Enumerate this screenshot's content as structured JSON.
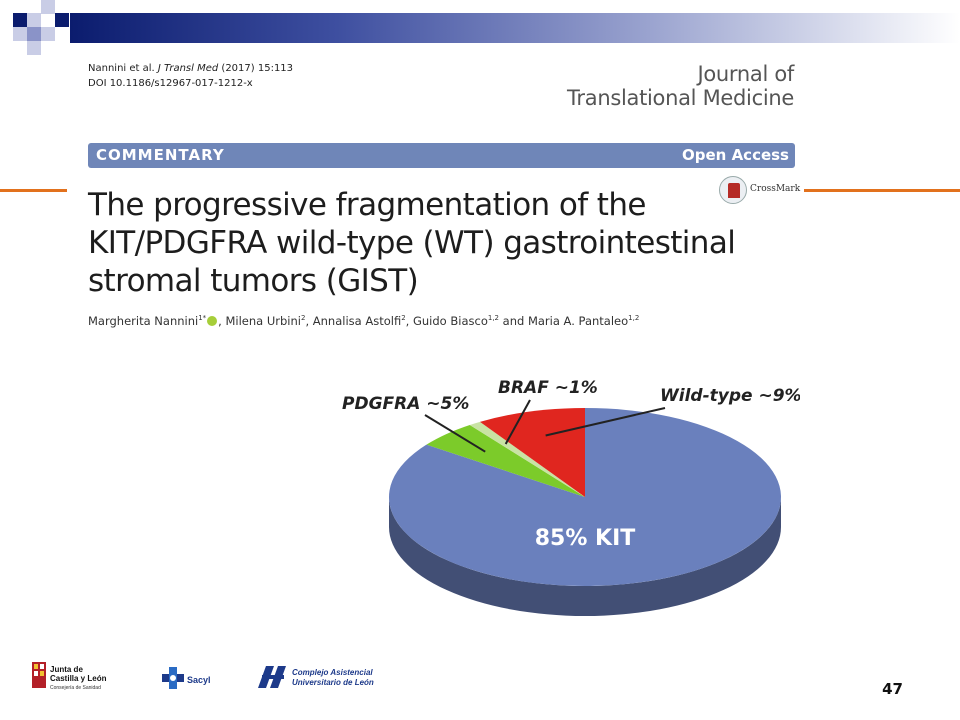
{
  "citation": {
    "line1_authors": "Nannini et al.",
    "line1_journal": "J Transl Med",
    "line1_rest": "(2017) 15:113",
    "doi": "DOI 10.1186/s12967-017-1212-x"
  },
  "journal": {
    "line1": "Journal of",
    "line2": "Translational Medicine"
  },
  "banner": {
    "type": "COMMENTARY",
    "access": "Open Access"
  },
  "crossmark": "CrossMark",
  "title": "The progressive fragmentation of the KIT/PDGFRA wild-type (WT) gastrointestinal stromal tumors (GIST)",
  "authors": [
    {
      "name": "Margherita Nannini",
      "sup": "1*",
      "orcid": true,
      "sep": ", "
    },
    {
      "name": "Milena Urbini",
      "sup": "2",
      "sep": ", "
    },
    {
      "name": "Annalisa Astolfi",
      "sup": "2",
      "sep": ", "
    },
    {
      "name": "Guido Biasco",
      "sup": "1,2",
      "sep": " and "
    },
    {
      "name": "Maria A. Pantaleo",
      "sup": "1,2",
      "sep": ""
    }
  ],
  "chart_data": {
    "type": "pie",
    "slices": [
      {
        "label": "85% KIT",
        "value": 85,
        "color": "#6a80bd"
      },
      {
        "label": "PDGFRA ~5%",
        "value": 5,
        "color": "#7ccb2a"
      },
      {
        "label": "BRAF ~1%",
        "value": 1,
        "color": "#c9e3a4"
      },
      {
        "label": "Wild-type ~9%",
        "value": 9,
        "color": "#e0261f"
      }
    ]
  },
  "logos": {
    "jcyl_line1": "Junta de",
    "jcyl_line2": "Castilla y León",
    "jcyl_line3": "Consejería de Sanidad",
    "sacyl": "Sacyl",
    "complejo_line1": "Complejo Asistencial",
    "complejo_line2": "Universitario de León"
  },
  "page_number": "47"
}
